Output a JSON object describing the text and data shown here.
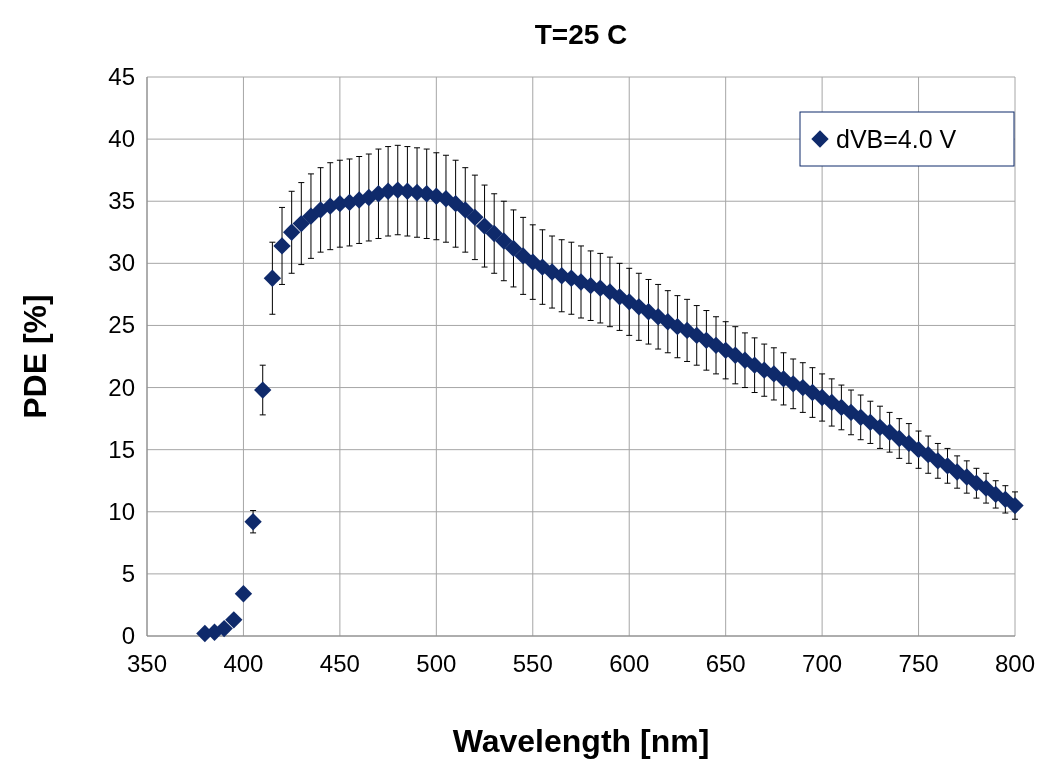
{
  "chart_data": {
    "type": "scatter",
    "title": "T=25 C",
    "xlabel": "Wavelength [nm]",
    "ylabel": "PDE [%]",
    "xlim": [
      350,
      800
    ],
    "xticks": [
      350,
      400,
      450,
      500,
      550,
      600,
      650,
      700,
      750,
      800
    ],
    "ylim": [
      0,
      45
    ],
    "yticks": [
      0,
      5,
      10,
      15,
      20,
      25,
      30,
      35,
      40,
      45
    ],
    "grid": true,
    "legend": "top right",
    "marker": "diamond",
    "x": [
      380,
      385,
      390,
      395,
      400,
      405,
      410,
      415,
      420,
      425,
      430,
      435,
      440,
      445,
      450,
      455,
      460,
      465,
      470,
      475,
      480,
      485,
      490,
      495,
      500,
      505,
      510,
      515,
      520,
      525,
      530,
      535,
      540,
      545,
      550,
      555,
      560,
      565,
      570,
      575,
      580,
      585,
      590,
      595,
      600,
      605,
      610,
      615,
      620,
      625,
      630,
      635,
      640,
      645,
      650,
      655,
      660,
      665,
      670,
      675,
      680,
      685,
      690,
      695,
      700,
      705,
      710,
      715,
      720,
      725,
      730,
      735,
      740,
      745,
      750,
      755,
      760,
      765,
      770,
      775,
      780,
      785,
      790,
      795,
      800
    ],
    "series": [
      {
        "name": "dVB=4.0 V",
        "color": "#0f2a6b",
        "values": [
          0.2,
          0.3,
          0.6,
          1.3,
          3.4,
          9.2,
          19.8,
          28.8,
          31.4,
          32.5,
          33.2,
          33.8,
          34.3,
          34.6,
          34.8,
          34.9,
          35.1,
          35.3,
          35.6,
          35.8,
          35.9,
          35.8,
          35.7,
          35.6,
          35.4,
          35.2,
          34.8,
          34.3,
          33.7,
          33.0,
          32.4,
          31.8,
          31.2,
          30.6,
          30.1,
          29.7,
          29.3,
          29.0,
          28.8,
          28.5,
          28.2,
          28.0,
          27.7,
          27.3,
          26.9,
          26.5,
          26.1,
          25.7,
          25.3,
          24.9,
          24.6,
          24.2,
          23.8,
          23.4,
          23.0,
          22.6,
          22.2,
          21.8,
          21.4,
          21.1,
          20.7,
          20.3,
          20.0,
          19.6,
          19.2,
          18.8,
          18.4,
          18.0,
          17.6,
          17.2,
          16.8,
          16.4,
          15.9,
          15.5,
          15.0,
          14.6,
          14.1,
          13.7,
          13.2,
          12.8,
          12.3,
          11.9,
          11.4,
          11.0,
          10.5
        ],
        "errors": [
          null,
          null,
          null,
          null,
          null,
          0.9,
          2.0,
          2.9,
          3.1,
          3.3,
          3.3,
          3.4,
          3.4,
          3.5,
          3.5,
          3.5,
          3.5,
          3.5,
          3.6,
          3.6,
          3.6,
          3.6,
          3.6,
          3.6,
          3.5,
          3.5,
          3.5,
          3.4,
          3.4,
          3.3,
          3.2,
          3.2,
          3.1,
          3.1,
          3.0,
          3.0,
          2.9,
          2.9,
          2.9,
          2.9,
          2.8,
          2.8,
          2.8,
          2.7,
          2.7,
          2.7,
          2.6,
          2.6,
          2.5,
          2.5,
          2.5,
          2.4,
          2.4,
          2.3,
          2.3,
          2.3,
          2.2,
          2.2,
          2.1,
          2.1,
          2.1,
          2.0,
          2.0,
          2.0,
          1.9,
          1.9,
          1.8,
          1.8,
          1.8,
          1.7,
          1.7,
          1.6,
          1.6,
          1.6,
          1.5,
          1.5,
          1.4,
          1.4,
          1.3,
          1.3,
          1.2,
          1.2,
          1.1,
          1.1,
          1.1
        ]
      }
    ]
  }
}
